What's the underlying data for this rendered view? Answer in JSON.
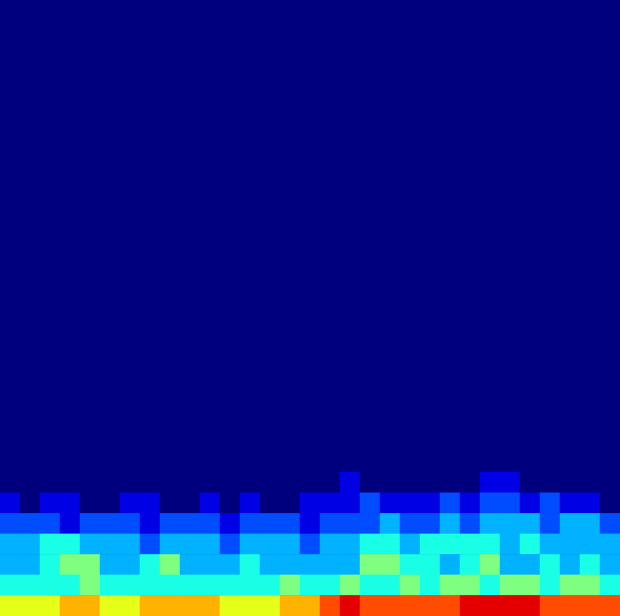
{
  "chart_data": {
    "type": "heatmap",
    "tick_labels": false,
    "color_range": [
      0,
      10
    ],
    "cells": [
      [
        0,
        0,
        0,
        0,
        0,
        0,
        0,
        0,
        0,
        0,
        0,
        0,
        0,
        0,
        0,
        0,
        0,
        0,
        0,
        0,
        0,
        0,
        0,
        0,
        0,
        0,
        0,
        0,
        0,
        0,
        0
      ],
      [
        0,
        0,
        0,
        0,
        0,
        0,
        0,
        0,
        0,
        0,
        0,
        0,
        0,
        0,
        0,
        0,
        0,
        0,
        0,
        0,
        0,
        0,
        0,
        0,
        0,
        0,
        0,
        0,
        0,
        0,
        0
      ],
      [
        0,
        0,
        0,
        0,
        0,
        0,
        0,
        0,
        0,
        0,
        0,
        0,
        0,
        0,
        0,
        0,
        0,
        0,
        0,
        0,
        0,
        0,
        0,
        0,
        0,
        0,
        0,
        0,
        0,
        0,
        0
      ],
      [
        0,
        0,
        0,
        0,
        0,
        0,
        0,
        0,
        0,
        0,
        0,
        0,
        0,
        0,
        0,
        0,
        0,
        0,
        0,
        0,
        0,
        0,
        0,
        0,
        0,
        0,
        0,
        0,
        0,
        0,
        0
      ],
      [
        0,
        0,
        0,
        0,
        0,
        0,
        0,
        0,
        0,
        0,
        0,
        0,
        0,
        0,
        0,
        0,
        0,
        0,
        0,
        0,
        0,
        0,
        0,
        0,
        0,
        0,
        0,
        0,
        0,
        0,
        0
      ],
      [
        0,
        0,
        0,
        0,
        0,
        0,
        0,
        0,
        0,
        0,
        0,
        0,
        0,
        0,
        0,
        0,
        0,
        0,
        0,
        0,
        0,
        0,
        0,
        0,
        0,
        0,
        0,
        0,
        0,
        0,
        0
      ],
      [
        0,
        0,
        0,
        0,
        0,
        0,
        0,
        0,
        0,
        0,
        0,
        0,
        0,
        0,
        0,
        0,
        0,
        0,
        0,
        0,
        0,
        0,
        0,
        0,
        0,
        0,
        0,
        0,
        0,
        0,
        0
      ],
      [
        0,
        0,
        0,
        0,
        0,
        0,
        0,
        0,
        0,
        0,
        0,
        0,
        0,
        0,
        0,
        0,
        0,
        0,
        0,
        0,
        0,
        0,
        0,
        0,
        0,
        0,
        0,
        0,
        0,
        0,
        0
      ],
      [
        0,
        0,
        0,
        0,
        0,
        0,
        0,
        0,
        0,
        0,
        0,
        0,
        0,
        0,
        0,
        0,
        0,
        0,
        0,
        0,
        0,
        0,
        0,
        0,
        0,
        0,
        0,
        0,
        0,
        0,
        0
      ],
      [
        0,
        0,
        0,
        0,
        0,
        0,
        0,
        0,
        0,
        0,
        0,
        0,
        0,
        0,
        0,
        0,
        0,
        0,
        0,
        0,
        0,
        0,
        0,
        0,
        0,
        0,
        0,
        0,
        0,
        0,
        0
      ],
      [
        0,
        0,
        0,
        0,
        0,
        0,
        0,
        0,
        0,
        0,
        0,
        0,
        0,
        0,
        0,
        0,
        0,
        0,
        0,
        0,
        0,
        0,
        0,
        0,
        0,
        0,
        0,
        0,
        0,
        0,
        0
      ],
      [
        0,
        0,
        0,
        0,
        0,
        0,
        0,
        0,
        0,
        0,
        0,
        0,
        0,
        0,
        0,
        0,
        0,
        0,
        0,
        0,
        0,
        0,
        0,
        0,
        0,
        0,
        0,
        0,
        0,
        0,
        0
      ],
      [
        0,
        0,
        0,
        0,
        0,
        0,
        0,
        0,
        0,
        0,
        0,
        0,
        0,
        0,
        0,
        0,
        0,
        0,
        0,
        0,
        0,
        0,
        0,
        0,
        0,
        0,
        0,
        0,
        0,
        0,
        0
      ],
      [
        0,
        0,
        0,
        0,
        0,
        0,
        0,
        0,
        0,
        0,
        0,
        0,
        0,
        0,
        0,
        0,
        0,
        0,
        0,
        0,
        0,
        0,
        0,
        0,
        0,
        0,
        0,
        0,
        0,
        0,
        0
      ],
      [
        0,
        0,
        0,
        0,
        0,
        0,
        0,
        0,
        0,
        0,
        0,
        0,
        0,
        0,
        0,
        0,
        0,
        0,
        0,
        0,
        0,
        0,
        0,
        0,
        0,
        0,
        0,
        0,
        0,
        0,
        0
      ],
      [
        0,
        0,
        0,
        0,
        0,
        0,
        0,
        0,
        0,
        0,
        0,
        0,
        0,
        0,
        0,
        0,
        0,
        0,
        0,
        0,
        0,
        0,
        0,
        0,
        0,
        0,
        0,
        0,
        0,
        0,
        0
      ],
      [
        0,
        0,
        0,
        0,
        0,
        0,
        0,
        0,
        0,
        0,
        0,
        0,
        0,
        0,
        0,
        0,
        0,
        0,
        0,
        0,
        0,
        0,
        0,
        0,
        0,
        0,
        0,
        0,
        0,
        0,
        0
      ],
      [
        0,
        0,
        0,
        0,
        0,
        0,
        0,
        0,
        0,
        0,
        0,
        0,
        0,
        0,
        0,
        0,
        0,
        0,
        0,
        0,
        0,
        0,
        0,
        0,
        0,
        0,
        0,
        0,
        0,
        0,
        0
      ],
      [
        0,
        0,
        0,
        0,
        0,
        0,
        0,
        0,
        0,
        0,
        0,
        0,
        0,
        0,
        0,
        0,
        0,
        0,
        0,
        0,
        0,
        0,
        0,
        0,
        0,
        0,
        0,
        0,
        0,
        0,
        0
      ],
      [
        0,
        0,
        0,
        0,
        0,
        0,
        0,
        0,
        0,
        0,
        0,
        0,
        0,
        0,
        0,
        0,
        0,
        0,
        0,
        0,
        0,
        0,
        0,
        0,
        0,
        0,
        0,
        0,
        0,
        0,
        0
      ],
      [
        0,
        0,
        0,
        0,
        0,
        0,
        0,
        0,
        0,
        0,
        0,
        0,
        0,
        0,
        0,
        0,
        0,
        0,
        0,
        0,
        0,
        0,
        0,
        0,
        0,
        0,
        0,
        0,
        0,
        0,
        0
      ],
      [
        0,
        0,
        0,
        0,
        0,
        0,
        0,
        0,
        0,
        0,
        0,
        0,
        0,
        0,
        0,
        0,
        0,
        0,
        0,
        0,
        0,
        0,
        0,
        0,
        0,
        0,
        0,
        0,
        0,
        0,
        0
      ],
      [
        0,
        0,
        0,
        0,
        0,
        0,
        0,
        0,
        0,
        0,
        0,
        0,
        0,
        0,
        0,
        0,
        0,
        0,
        0,
        0,
        0,
        0,
        0,
        0,
        0,
        0,
        0,
        0,
        0,
        0,
        0
      ],
      [
        0,
        0,
        0,
        0,
        0,
        0,
        0,
        0,
        0,
        0,
        0,
        0,
        0,
        0,
        0,
        0,
        0,
        1,
        0,
        0,
        0,
        0,
        0,
        0,
        1,
        1,
        0,
        0,
        0,
        0,
        0
      ],
      [
        1,
        0,
        1,
        1,
        0,
        0,
        1,
        1,
        0,
        0,
        1,
        0,
        1,
        0,
        0,
        1,
        1,
        1,
        2,
        1,
        1,
        1,
        2,
        1,
        2,
        2,
        1,
        2,
        1,
        1,
        0
      ],
      [
        2,
        2,
        2,
        1,
        2,
        2,
        2,
        1,
        2,
        2,
        2,
        1,
        2,
        2,
        2,
        1,
        2,
        2,
        2,
        3,
        2,
        2,
        3,
        2,
        3,
        3,
        3,
        2,
        3,
        3,
        2
      ],
      [
        3,
        3,
        4,
        4,
        3,
        3,
        3,
        2,
        3,
        3,
        3,
        2,
        3,
        3,
        3,
        2,
        3,
        3,
        4,
        4,
        3,
        4,
        4,
        4,
        4,
        3,
        4,
        3,
        3,
        3,
        3
      ],
      [
        3,
        3,
        4,
        5,
        5,
        3,
        3,
        4,
        5,
        3,
        3,
        3,
        4,
        3,
        3,
        3,
        3,
        3,
        5,
        5,
        4,
        4,
        3,
        4,
        5,
        3,
        3,
        4,
        3,
        4,
        3
      ],
      [
        4,
        4,
        4,
        4,
        5,
        4,
        4,
        4,
        4,
        4,
        4,
        4,
        4,
        4,
        5,
        4,
        4,
        5,
        4,
        4,
        5,
        4,
        5,
        5,
        4,
        5,
        5,
        4,
        5,
        5,
        4
      ],
      [
        6,
        6,
        6,
        7,
        7,
        6,
        6,
        7,
        7,
        7,
        7,
        6,
        6,
        6,
        7,
        7,
        8,
        9,
        8,
        8,
        8,
        8,
        8,
        9,
        9,
        9,
        9,
        8,
        8,
        8,
        8
      ]
    ]
  }
}
